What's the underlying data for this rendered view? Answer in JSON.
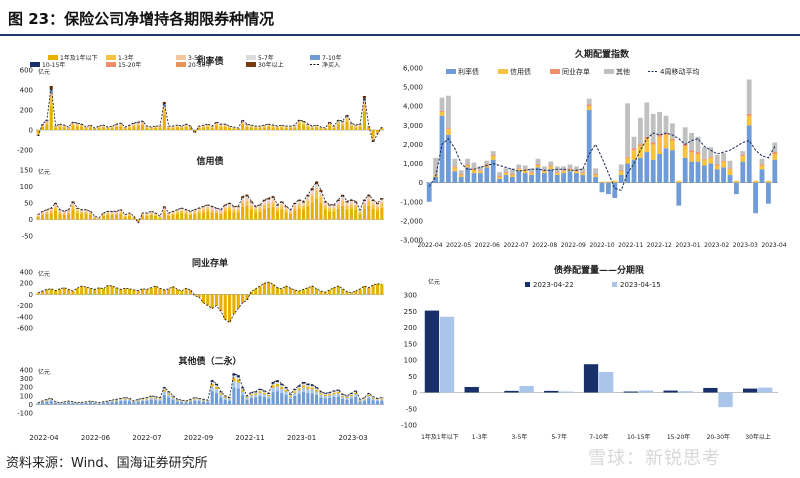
{
  "page": {
    "title": "图 23：保险公司净增持各期限券种情况",
    "source": "资料来源：Wind、国海证券研究所",
    "watermark": "雪球：新锐思考"
  },
  "colors": {
    "navy": "#17306a",
    "blue": "#6f9bd6",
    "lightblue": "#a9c5ea",
    "yellow": "#f5c242",
    "gold": "#e6b000",
    "peach": "#f3c7a0",
    "orange": "#e8935a",
    "salmon": "#f08e6c",
    "gray": "#c0c0c0",
    "lightgray": "#dcdcdc",
    "brown": "#7a3b10",
    "dark": "#222222"
  },
  "chart_data": [
    {
      "id": "rate",
      "type": "bar",
      "title": "利率债",
      "unit": "亿元",
      "ylim": [
        -200,
        600
      ],
      "yticks": [
        -200,
        0,
        200,
        400,
        600
      ],
      "legend": [
        "1年及1年以下",
        "1-3年",
        "3-5年",
        "5-7年",
        "7-10年",
        "10-15年",
        "15-20年",
        "20-30年",
        "30年以上",
        "净买入"
      ],
      "series": [
        {
          "name": "净买入",
          "values": [
            -60,
            60,
            100,
            440,
            40,
            60,
            50,
            30,
            80,
            70,
            60,
            30,
            50,
            20,
            40,
            50,
            30,
            40,
            60,
            70,
            30,
            50,
            70,
            80,
            90,
            40,
            30,
            40,
            40,
            280,
            40,
            40,
            50,
            40,
            60,
            40,
            -30,
            40,
            50,
            60,
            40,
            80,
            60,
            60,
            40,
            30,
            20,
            100,
            60,
            50,
            40,
            40,
            50,
            60,
            50,
            40,
            50,
            40,
            40,
            50,
            100,
            90,
            60,
            40,
            50,
            30,
            20,
            80,
            40,
            100,
            90,
            150,
            70,
            50,
            60,
            340,
            40,
            -120,
            -40,
            30
          ]
        }
      ]
    },
    {
      "id": "credit",
      "type": "bar",
      "title": "信用债",
      "unit": "亿元",
      "ylim": [
        -50,
        150
      ],
      "yticks": [
        -50,
        0,
        50,
        100,
        150
      ],
      "series": [
        {
          "name": "净买入",
          "values": [
            15,
            25,
            30,
            35,
            50,
            30,
            25,
            30,
            55,
            35,
            30,
            30,
            25,
            10,
            5,
            20,
            25,
            25,
            25,
            30,
            15,
            20,
            10,
            -10,
            20,
            20,
            25,
            20,
            10,
            40,
            20,
            25,
            30,
            35,
            30,
            25,
            30,
            35,
            40,
            45,
            40,
            35,
            30,
            45,
            50,
            40,
            40,
            70,
            75,
            55,
            40,
            45,
            60,
            65,
            70,
            45,
            55,
            40,
            30,
            50,
            60,
            55,
            75,
            95,
            115,
            90,
            55,
            45,
            45,
            60,
            75,
            55,
            60,
            55,
            30,
            60,
            75,
            60,
            50,
            65
          ]
        }
      ]
    },
    {
      "id": "interbank",
      "type": "bar",
      "title": "同业存单",
      "unit": "亿元",
      "ylim": [
        -600,
        400
      ],
      "yticks": [
        -600,
        -400,
        -200,
        0,
        200,
        400
      ],
      "series": [
        {
          "name": "净买入",
          "values": [
            30,
            60,
            90,
            100,
            70,
            100,
            120,
            90,
            60,
            110,
            150,
            130,
            110,
            90,
            120,
            100,
            160,
            150,
            120,
            90,
            110,
            100,
            80,
            70,
            100,
            90,
            120,
            150,
            110,
            80,
            100,
            140,
            90,
            60,
            110,
            80,
            -20,
            -50,
            -150,
            -200,
            -250,
            -200,
            -300,
            -450,
            -500,
            -350,
            -250,
            -150,
            -100,
            50,
            100,
            150,
            200,
            220,
            180,
            120,
            100,
            150,
            110,
            80,
            60,
            90,
            120,
            150,
            100,
            60,
            40,
            80,
            120,
            150,
            100,
            50,
            30,
            60,
            100,
            150,
            120,
            170,
            190,
            180
          ]
        }
      ]
    },
    {
      "id": "other",
      "type": "bar",
      "title": "其他债（二永）",
      "unit": "亿元",
      "ylim": [
        -100,
        400
      ],
      "yticks": [
        -100,
        0,
        100,
        200,
        300,
        400
      ],
      "series": [
        {
          "name": "净买入",
          "values": [
            20,
            40,
            60,
            70,
            30,
            20,
            30,
            40,
            30,
            20,
            25,
            30,
            40,
            30,
            20,
            30,
            40,
            50,
            60,
            70,
            80,
            70,
            40,
            60,
            70,
            80,
            100,
            90,
            80,
            200,
            150,
            100,
            60,
            50,
            40,
            60,
            80,
            70,
            60,
            50,
            280,
            240,
            150,
            100,
            80,
            360,
            340,
            200,
            100,
            140,
            150,
            180,
            160,
            130,
            260,
            280,
            240,
            200,
            120,
            180,
            220,
            260,
            240,
            230,
            200,
            150,
            130,
            140,
            160,
            170,
            120,
            100,
            130,
            160,
            60,
            80,
            130,
            90,
            70,
            80
          ]
        }
      ],
      "xticks": [
        "2022-04",
        "2022-06",
        "2022-07",
        "2022-09",
        "2022-11",
        "2023-01",
        "2023-03"
      ]
    },
    {
      "id": "longterm",
      "type": "bar",
      "title": "久期配置指数",
      "ylim": [
        -3000,
        6000
      ],
      "yticks": [
        -3000,
        -2000,
        -1000,
        0,
        1000,
        2000,
        3000,
        4000,
        5000,
        6000
      ],
      "legend": [
        "利率债",
        "信用债",
        "同业存单",
        "其他",
        "4周移动平均"
      ],
      "xticks": [
        "2022-04",
        "2022-05",
        "2022-06",
        "2022-07",
        "2022-08",
        "2022-09",
        "2022-10",
        "2022-11",
        "2022-12",
        "2023-01",
        "2023-02",
        "2023-03",
        "2023-04"
      ],
      "series": [
        {
          "name": "利率债",
          "values": [
            -1000,
            300,
            3500,
            2500,
            600,
            300,
            800,
            500,
            500,
            800,
            1200,
            200,
            400,
            300,
            600,
            500,
            400,
            800,
            500,
            700,
            400,
            500,
            600,
            500,
            400,
            3800,
            300,
            -500,
            -600,
            -800,
            400,
            1000,
            1200,
            1300,
            1600,
            1200,
            1500,
            1800,
            1700,
            -1200,
            1300,
            1100,
            1100,
            900,
            1000,
            700,
            800,
            400,
            -600,
            1100,
            3000,
            -1600,
            700,
            -1100,
            1200
          ]
        },
        {
          "name": "信用债",
          "values": [
            0,
            100,
            200,
            300,
            200,
            100,
            100,
            200,
            100,
            100,
            200,
            100,
            100,
            100,
            100,
            150,
            100,
            100,
            100,
            150,
            100,
            100,
            100,
            100,
            100,
            200,
            100,
            50,
            50,
            100,
            200,
            300,
            500,
            600,
            700,
            800,
            900,
            700,
            500,
            100,
            600,
            500,
            400,
            300,
            300,
            200,
            300,
            300,
            100,
            300,
            500,
            100,
            200,
            100,
            300
          ]
        },
        {
          "name": "同业存单",
          "values": [
            0,
            0,
            50,
            50,
            50,
            50,
            50,
            50,
            50,
            50,
            50,
            50,
            50,
            50,
            50,
            50,
            50,
            50,
            50,
            50,
            50,
            50,
            50,
            50,
            50,
            100,
            50,
            0,
            0,
            0,
            50,
            50,
            100,
            100,
            100,
            100,
            100,
            100,
            100,
            0,
            100,
            100,
            100,
            50,
            50,
            50,
            50,
            50,
            0,
            50,
            100,
            0,
            50,
            0,
            100
          ]
        },
        {
          "name": "其他",
          "values": [
            0,
            900,
            700,
            1700,
            400,
            200,
            300,
            300,
            200,
            200,
            200,
            200,
            200,
            300,
            200,
            200,
            200,
            300,
            200,
            200,
            300,
            200,
            200,
            200,
            200,
            300,
            300,
            0,
            0,
            0,
            300,
            2800,
            600,
            1400,
            1800,
            1500,
            1200,
            900,
            800,
            0,
            900,
            900,
            800,
            600,
            500,
            500,
            400,
            400,
            0,
            200,
            1800,
            0,
            300,
            0,
            500
          ]
        },
        {
          "name": "4周移动平均",
          "values": [
            -200,
            300,
            2000,
            2300,
            1800,
            1000,
            700,
            700,
            800,
            900,
            1000,
            900,
            800,
            700,
            600,
            650,
            700,
            700,
            650,
            650,
            700,
            700,
            650,
            650,
            700,
            1500,
            2000,
            1300,
            500,
            -300,
            -400,
            500,
            1000,
            1700,
            2300,
            2600,
            2500,
            2600,
            2500,
            2300,
            2000,
            2200,
            2300,
            1900,
            1700,
            1500,
            1600,
            1700,
            1900,
            2100,
            2200,
            1700,
            1400,
            1300,
            1900
          ]
        }
      ]
    },
    {
      "id": "maturity",
      "type": "bar",
      "title": "债券配置量——分期限",
      "unit": "亿元",
      "ylim": [
        -100,
        300
      ],
      "yticks": [
        -100,
        -50,
        0,
        50,
        100,
        150,
        200,
        250,
        300
      ],
      "categories": [
        "1年及1年以下",
        "1-3年",
        "3-5年",
        "5-7年",
        "7-10年",
        "10-15年",
        "15-20年",
        "20-30年",
        "30年以上"
      ],
      "series": [
        {
          "name": "2023-04-22",
          "values": [
            252,
            17,
            5,
            5,
            87,
            3,
            6,
            14,
            12
          ]
        },
        {
          "name": "2023-04-15",
          "values": [
            233,
            0,
            20,
            3,
            63,
            6,
            4,
            -45,
            15
          ]
        }
      ]
    }
  ]
}
